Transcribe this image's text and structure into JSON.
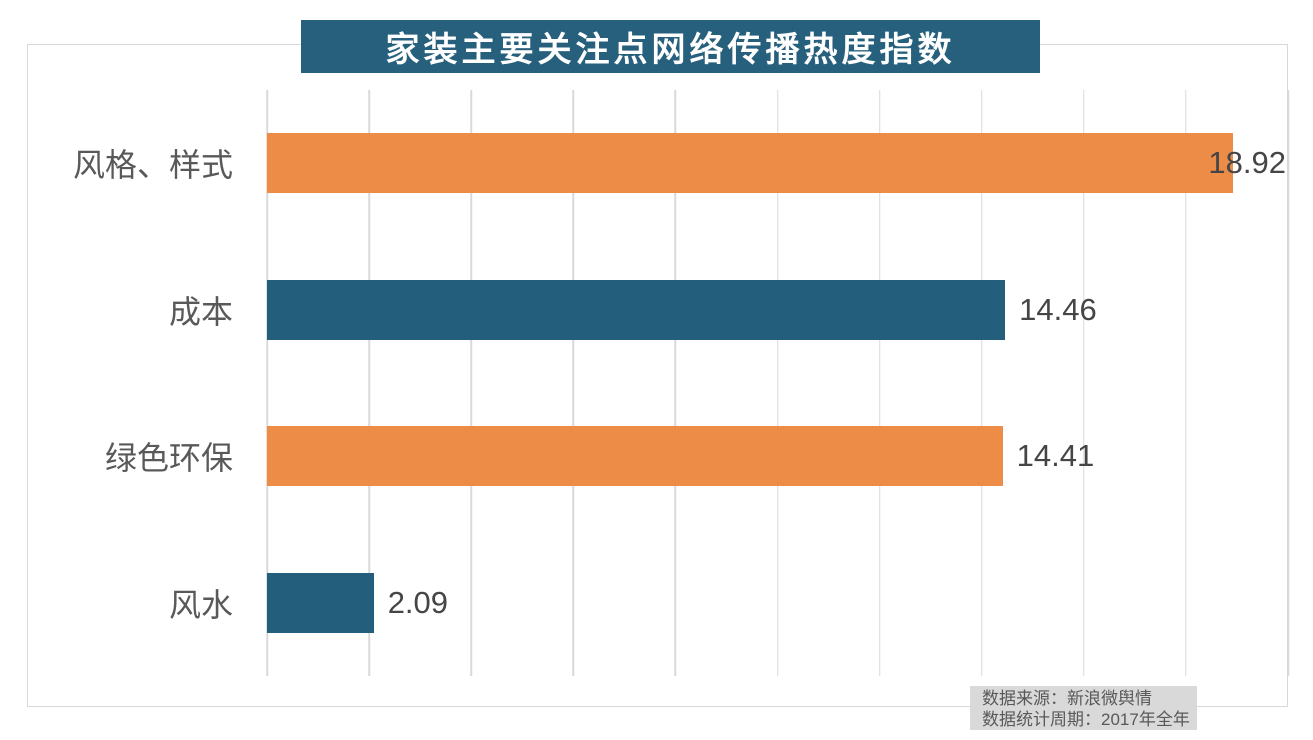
{
  "chart_data": {
    "type": "bar",
    "orientation": "horizontal",
    "title": "家装主要关注点网络传播热度指数",
    "categories": [
      "风格、样式",
      "成本",
      "绿色环保",
      "风水"
    ],
    "values": [
      18.92,
      14.46,
      14.41,
      2.09
    ],
    "value_labels": [
      "18.92",
      "14.46",
      "14.41",
      "2.09"
    ],
    "bar_colors": [
      "#ED8C47",
      "#235E7C",
      "#ED8C47",
      "#235E7C"
    ],
    "xlim": [
      0,
      20
    ],
    "gridline_step": 2,
    "grid": "vertical-only",
    "legend": "none",
    "data_labels": "outside-end",
    "colors": {
      "title_bg": "#26607C",
      "title_text": "#FFFFFF",
      "gridline": "#D9D9D9",
      "frame_border": "#D9D9D9",
      "category_text": "#595959",
      "value_text": "#454545",
      "note_bg": "#D9D9D9",
      "note_text": "#595959"
    }
  },
  "footer": {
    "source_line": "数据来源：新浪微舆情",
    "period_line": "数据统计周期：2017年全年"
  }
}
